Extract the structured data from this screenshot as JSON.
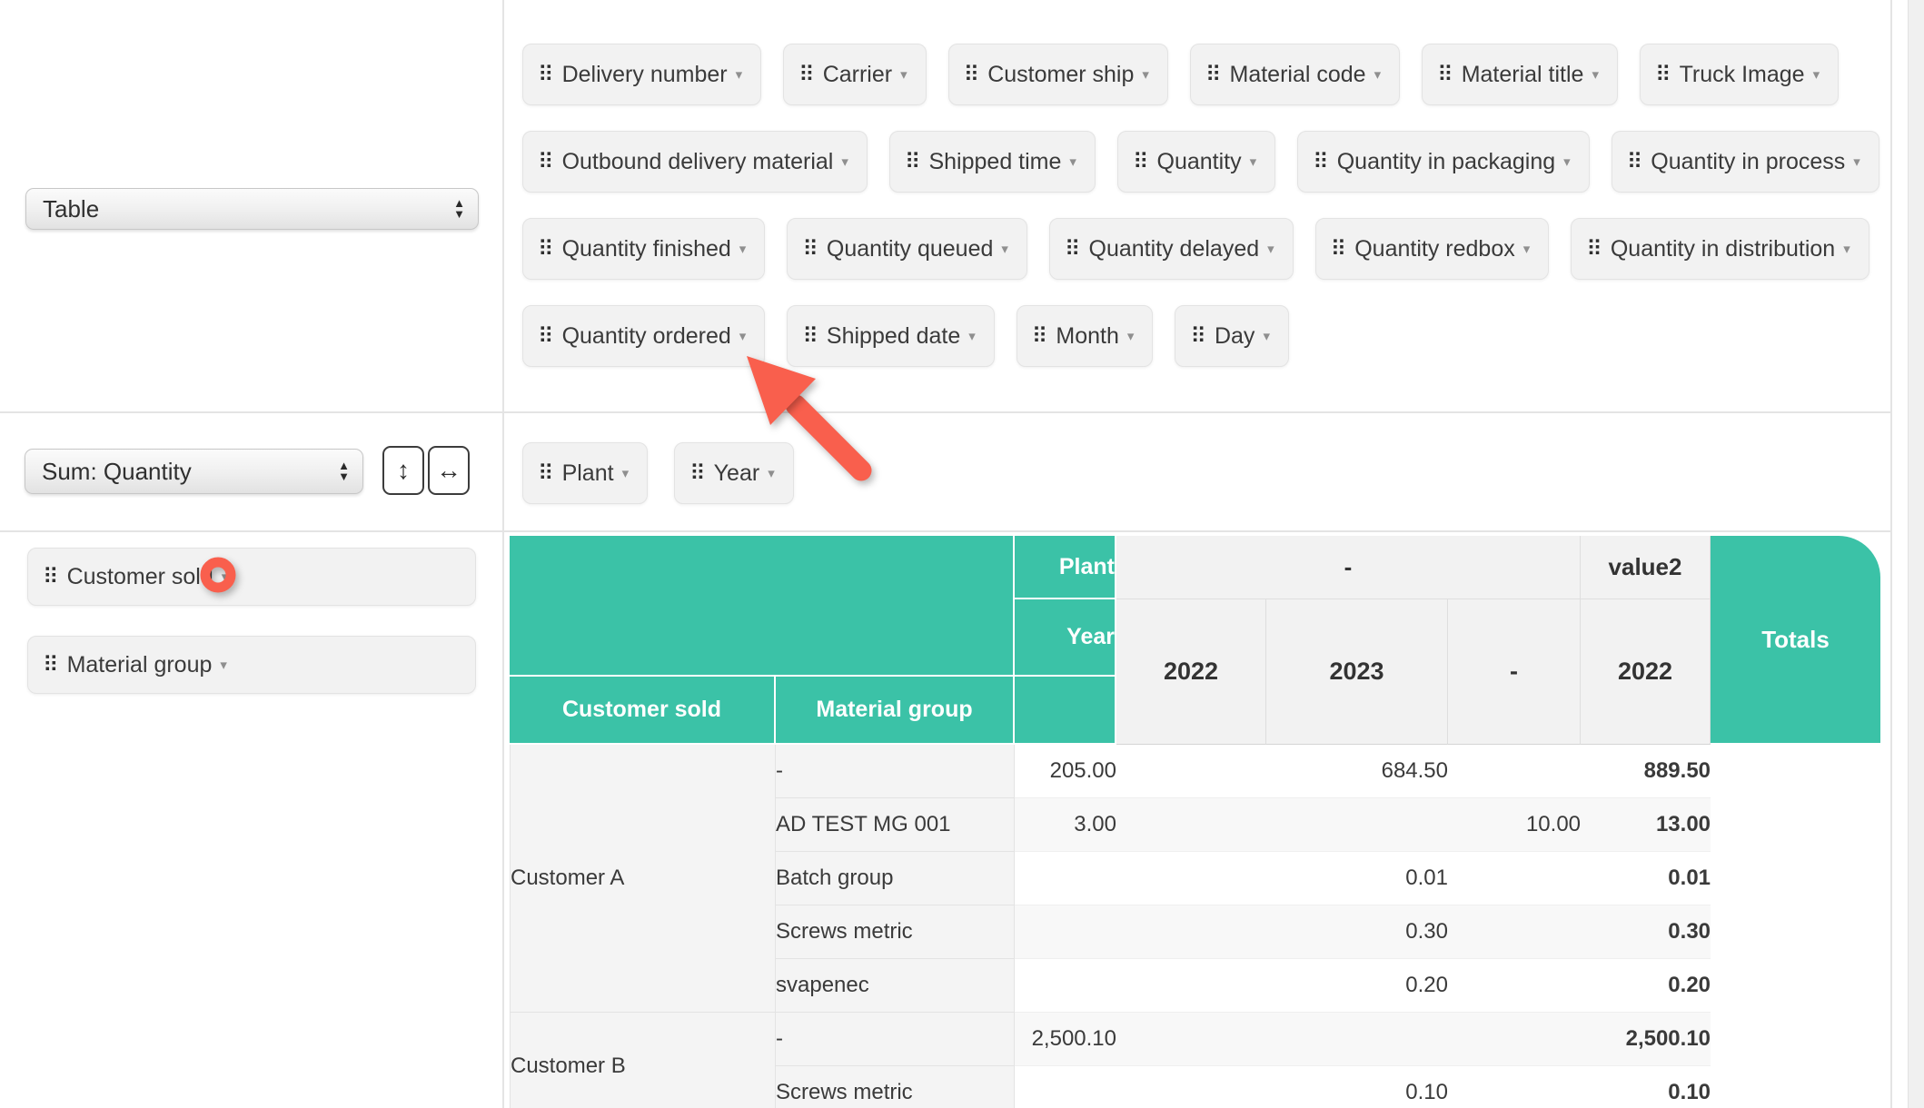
{
  "colors": {
    "teal": "#3bc2a7",
    "annotation": "#f95f4d",
    "pill_bg": "#f2f2f2",
    "header_cell_bg": "#f2f2f2",
    "row_label_bg": "#f4f4f4",
    "stripe_bg": "#f8f8f8"
  },
  "icons": {
    "drag_handle": "⠿",
    "caret": "▾",
    "select_up": "▲",
    "select_down": "▼",
    "row_order": "↕",
    "col_order": "↔"
  },
  "renderer": {
    "value": "Table"
  },
  "aggregator": {
    "value": "Sum: Quantity"
  },
  "unused_attributes": {
    "rows": [
      [
        "Delivery number",
        "Carrier",
        "Customer ship",
        "Material code",
        "Material title",
        "Truck Image"
      ],
      [
        "Outbound delivery material",
        "Shipped time",
        "Quantity",
        "Quantity in packaging",
        "Quantity in process"
      ],
      [
        "Quantity finished",
        "Quantity queued",
        "Quantity delayed",
        "Quantity redbox",
        "Quantity in distribution"
      ],
      [
        "Quantity ordered",
        "Shipped date",
        "Month",
        "Day"
      ]
    ]
  },
  "column_attributes": [
    {
      "label": "Plant"
    },
    {
      "label": "Year"
    }
  ],
  "row_attributes": [
    {
      "label": "Customer sold"
    },
    {
      "label": "Material group"
    }
  ],
  "pivot": {
    "corner_labels": {
      "plant": "Plant",
      "year": "Year",
      "customer": "Customer sold",
      "material": "Material group"
    },
    "column_groups": [
      {
        "label": "-",
        "colspan": 3
      },
      {
        "label": "value2",
        "colspan": 1
      }
    ],
    "year_columns": [
      "2022",
      "2023",
      "-",
      "2022"
    ],
    "totals_label": "Totals",
    "body_rows": [
      {
        "customer": "Customer A",
        "customer_rowspan": 5,
        "material": "-",
        "values": [
          "205.00",
          "",
          "684.50",
          ""
        ],
        "total": "889.50"
      },
      {
        "material": "AD TEST MG 001",
        "values": [
          "3.00",
          "",
          "",
          "10.00"
        ],
        "total": "13.00"
      },
      {
        "material": "Batch group",
        "values": [
          "",
          "",
          "0.01",
          ""
        ],
        "total": "0.01"
      },
      {
        "material": "Screws metric",
        "values": [
          "",
          "",
          "0.30",
          ""
        ],
        "total": "0.30"
      },
      {
        "material": "svapenec",
        "values": [
          "",
          "",
          "0.20",
          ""
        ],
        "total": "0.20"
      },
      {
        "customer": "Customer B",
        "customer_rowspan": 2,
        "material": "-",
        "values": [
          "2,500.10",
          "",
          "",
          ""
        ],
        "total": "2,500.10"
      },
      {
        "material": "Screws metric",
        "values": [
          "",
          "",
          "0.10",
          ""
        ],
        "total": "0.10"
      }
    ]
  },
  "annotations": {
    "color": "#f95f4d"
  }
}
